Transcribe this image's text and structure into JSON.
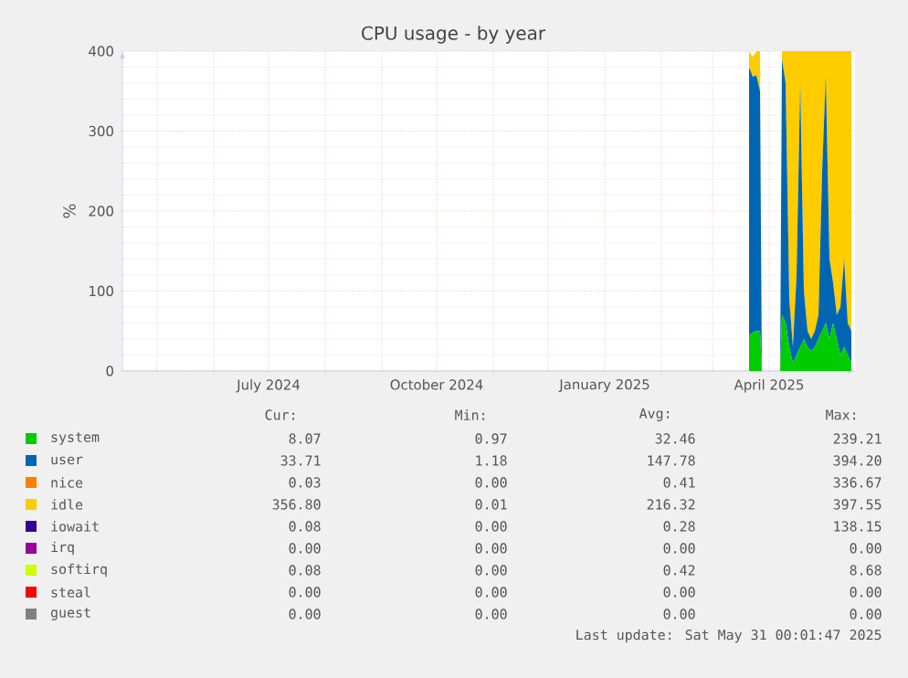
{
  "chart_data": {
    "type": "area",
    "stacked": true,
    "title": "CPU usage - by year",
    "ylabel": "%",
    "x": [
      "2025-03-21",
      "2025-03-23",
      "2025-03-25",
      "2025-03-27",
      "2025-03-28",
      "2025-04-07",
      "2025-04-08",
      "2025-04-10",
      "2025-04-12",
      "2025-04-14",
      "2025-04-16",
      "2025-04-18",
      "2025-04-20",
      "2025-04-22",
      "2025-04-24",
      "2025-04-26",
      "2025-04-28",
      "2025-04-30",
      "2025-05-02",
      "2025-05-04",
      "2025-05-06",
      "2025-05-08",
      "2025-05-10",
      "2025-05-12",
      "2025-05-14",
      "2025-05-16"
    ],
    "series": [
      {
        "name": "system",
        "color": "#00cc00",
        "values": [
          45,
          48,
          50,
          50,
          0,
          0,
          70,
          60,
          30,
          10,
          20,
          30,
          40,
          30,
          25,
          30,
          40,
          50,
          60,
          40,
          60,
          40,
          20,
          30,
          20,
          10
        ]
      },
      {
        "name": "user",
        "color": "#0066b3",
        "values": [
          335,
          320,
          320,
          300,
          0,
          0,
          320,
          300,
          60,
          20,
          100,
          330,
          60,
          20,
          15,
          20,
          30,
          200,
          310,
          100,
          50,
          30,
          60,
          110,
          40,
          40
        ]
      },
      {
        "name": "nice",
        "color": "#ff8000",
        "values": [
          null,
          null,
          null,
          null,
          null,
          null,
          null,
          null,
          null,
          null,
          null,
          null,
          null,
          null,
          null,
          null,
          null,
          null,
          null,
          null,
          null,
          null,
          null,
          null,
          null,
          null
        ]
      },
      {
        "name": "idle",
        "color": "#ffcc00",
        "values": [
          20,
          25,
          30,
          50,
          0,
          0,
          10,
          40,
          310,
          370,
          280,
          40,
          300,
          350,
          360,
          350,
          330,
          150,
          30,
          260,
          290,
          330,
          320,
          260,
          340,
          350
        ]
      },
      {
        "name": "iowait",
        "color": "#330099",
        "values": [
          null,
          null,
          null,
          null,
          null,
          null,
          null,
          null,
          null,
          null,
          null,
          null,
          null,
          null,
          null,
          null,
          null,
          null,
          null,
          null,
          null,
          null,
          null,
          null,
          null,
          null
        ]
      },
      {
        "name": "irq",
        "color": "#990099",
        "values": [
          null,
          null,
          null,
          null,
          null,
          null,
          null,
          null,
          null,
          null,
          null,
          null,
          null,
          null,
          null,
          null,
          null,
          null,
          null,
          null,
          null,
          null,
          null,
          null,
          null,
          null
        ]
      },
      {
        "name": "softirq",
        "color": "#ccff00",
        "values": [
          null,
          null,
          null,
          null,
          null,
          null,
          null,
          null,
          null,
          null,
          null,
          null,
          null,
          null,
          null,
          null,
          null,
          null,
          null,
          null,
          null,
          null,
          null,
          null,
          null,
          null
        ]
      },
      {
        "name": "steal",
        "color": "#ff0000",
        "values": [
          null,
          null,
          null,
          null,
          null,
          null,
          null,
          null,
          null,
          null,
          null,
          null,
          null,
          null,
          null,
          null,
          null,
          null,
          null,
          null,
          null,
          null,
          null,
          null,
          null,
          null
        ]
      },
      {
        "name": "guest",
        "color": "#808080",
        "values": [
          null,
          null,
          null,
          null,
          null,
          null,
          null,
          null,
          null,
          null,
          null,
          null,
          null,
          null,
          null,
          null,
          null,
          null,
          null,
          null,
          null,
          null,
          null,
          null,
          null,
          null
        ]
      }
    ],
    "xlim": [
      "2024-04-12",
      "2025-05-18"
    ],
    "xticks": [
      {
        "value": "2024-05-01",
        "label": null
      },
      {
        "value": "2024-06-01",
        "label": null
      },
      {
        "value": "2024-07-01",
        "label": "July 2024"
      },
      {
        "value": "2024-08-01",
        "label": null
      },
      {
        "value": "2024-09-01",
        "label": null
      },
      {
        "value": "2024-10-01",
        "label": "October 2024"
      },
      {
        "value": "2024-11-01",
        "label": null
      },
      {
        "value": "2024-12-01",
        "label": null
      },
      {
        "value": "2025-01-01",
        "label": "January 2025"
      },
      {
        "value": "2025-02-01",
        "label": null
      },
      {
        "value": "2025-03-01",
        "label": null
      },
      {
        "value": "2025-04-01",
        "label": "April 2025"
      },
      {
        "value": "2025-05-01",
        "label": null
      }
    ],
    "ylim": [
      0,
      400
    ],
    "yticks": [
      0,
      100,
      200,
      300,
      400
    ],
    "grid": true,
    "legend": "bottom",
    "annotations": [
      "Cur:",
      "Min:",
      "Avg:",
      "Max:",
      "8.07",
      "0.97",
      "32.46",
      "239.21",
      "33.71",
      "1.18",
      "147.78",
      "394.20",
      "0.03",
      "0.00",
      "0.41",
      "336.67",
      "356.80",
      "0.01",
      "216.32",
      "397.55",
      "0.08",
      "0.00",
      "0.28",
      "138.15",
      "0.00",
      "0.00",
      "0.00",
      "0.00",
      "0.08",
      "0.00",
      "0.42",
      "8.68",
      "0.00",
      "0.00",
      "0.00",
      "0.00",
      "0.00",
      "0.00",
      "0.00",
      "0.00",
      "Last update: Sat May 31 00:01:47 2025"
    ]
  }
}
